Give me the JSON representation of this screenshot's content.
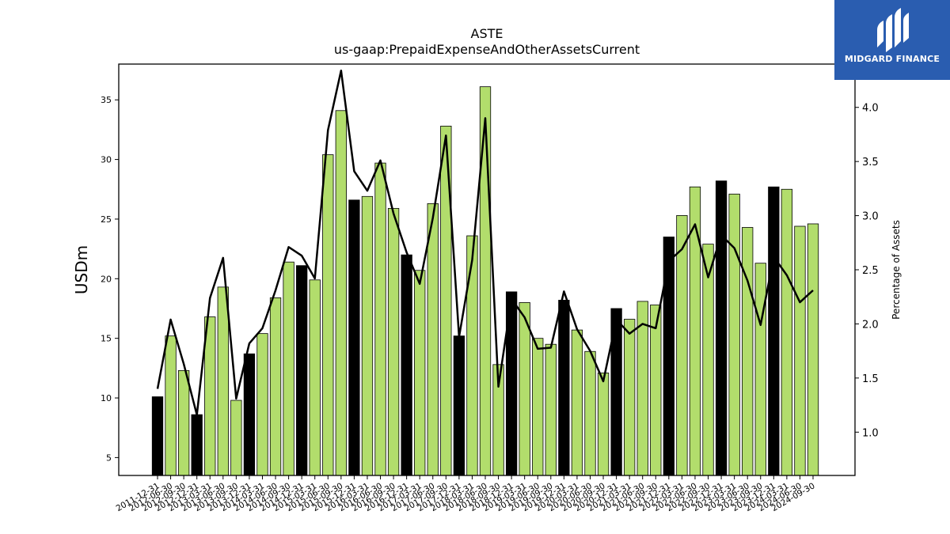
{
  "chart_data": {
    "type": "bar",
    "title": "ASTE",
    "subtitle": "us-gaap:PrepaidExpenseAndOtherAssetsCurrent",
    "ylabel": "USDm",
    "y2label": "Percentage of Assets",
    "ylim": [
      3.5,
      38
    ],
    "y2lim": [
      0.6,
      4.4
    ],
    "yticks": [
      5,
      10,
      15,
      20,
      25,
      30,
      35
    ],
    "y2ticks": [
      1.0,
      1.5,
      2.0,
      2.5,
      3.0,
      3.5,
      4.0
    ],
    "categories": [
      "2011-12-31",
      "2012-06-30",
      "2012-09-30",
      "2012-12-31",
      "2013-03-31",
      "2013-06-30",
      "2013-09-30",
      "2013-12-31",
      "2014-03-31",
      "2014-06-30",
      "2014-09-30",
      "2014-12-31",
      "2015-03-31",
      "2015-06-30",
      "2015-09-30",
      "2015-12-31",
      "2016-03-31",
      "2016-06-30",
      "2016-09-30",
      "2016-12-31",
      "2017-03-31",
      "2017-06-30",
      "2017-09-30",
      "2017-12-31",
      "2018-03-31",
      "2018-06-30",
      "2018-09-30",
      "2018-12-31",
      "2019-03-31",
      "2019-06-30",
      "2019-09-30",
      "2019-12-31",
      "2020-03-31",
      "2020-06-30",
      "2020-09-30",
      "2020-12-31",
      "2021-03-31",
      "2021-06-30",
      "2021-09-30",
      "2021-12-31",
      "2022-03-31",
      "2022-06-30",
      "2022-09-30",
      "2022-12-31",
      "2023-03-31",
      "2023-06-30",
      "2023-09-30",
      "2023-12-31",
      "2024-03-31",
      "2024-06-30",
      "2024-09-30"
    ],
    "series": [
      {
        "type": "bar",
        "values": [
          10.1,
          15.2,
          12.3,
          8.6,
          16.8,
          19.3,
          9.8,
          13.7,
          15.4,
          18.4,
          21.4,
          21.1,
          19.9,
          30.4,
          34.1,
          26.6,
          26.9,
          29.7,
          25.9,
          22.0,
          20.7,
          26.3,
          32.8,
          15.2,
          23.6,
          36.1,
          12.8,
          18.9,
          18.0,
          15.0,
          14.5,
          18.2,
          15.7,
          13.9,
          12.1,
          17.5,
          16.6,
          18.1,
          17.8,
          23.5,
          25.3,
          27.7,
          22.9,
          28.2,
          27.1,
          24.3,
          21.3,
          27.7,
          27.5,
          24.4,
          24.6
        ],
        "year_end": [
          true,
          false,
          false,
          true,
          false,
          false,
          false,
          true,
          false,
          false,
          false,
          true,
          false,
          false,
          false,
          true,
          false,
          false,
          false,
          true,
          false,
          false,
          false,
          true,
          false,
          false,
          false,
          true,
          false,
          false,
          false,
          true,
          false,
          false,
          false,
          true,
          false,
          false,
          false,
          true,
          false,
          false,
          false,
          true,
          false,
          false,
          false,
          true,
          false,
          false,
          false
        ]
      },
      {
        "type": "line",
        "axis": "right",
        "values": [
          1.4,
          2.04,
          1.63,
          1.16,
          2.24,
          2.61,
          1.31,
          1.82,
          1.96,
          2.31,
          2.71,
          2.63,
          2.42,
          3.79,
          4.34,
          3.41,
          3.23,
          3.51,
          3.02,
          2.66,
          2.37,
          2.98,
          3.74,
          1.88,
          2.59,
          3.9,
          1.42,
          2.23,
          2.06,
          1.77,
          1.78,
          2.3,
          1.95,
          1.75,
          1.47,
          2.04,
          1.91,
          2.0,
          1.96,
          2.58,
          2.69,
          2.92,
          2.43,
          2.82,
          2.7,
          2.4,
          1.99,
          2.62,
          2.45,
          2.2,
          2.31
        ]
      }
    ],
    "colors": {
      "bar": "#b2dd6c",
      "bar_year_end": "#000000",
      "line": "#000000"
    },
    "grid": false
  },
  "logo": {
    "text": "MIDGARD FINANCE",
    "background": "#2a5db0"
  }
}
